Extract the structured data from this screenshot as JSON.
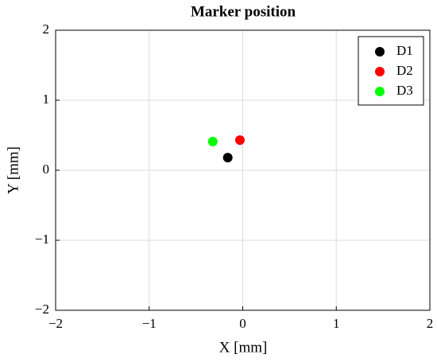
{
  "chart_data": {
    "type": "scatter",
    "title": "Marker position",
    "x_label": "X [mm]",
    "y_label": "Y [mm]",
    "series": [
      {
        "name": "D1",
        "color": "#000000",
        "x": [
          -0.16
        ],
        "values": [
          0.18
        ]
      },
      {
        "name": "D2",
        "color": "#ff0000",
        "x": [
          -0.03
        ],
        "values": [
          0.43
        ]
      },
      {
        "name": "D3",
        "color": "#00ff00",
        "x": [
          -0.32
        ],
        "values": [
          0.41
        ]
      }
    ],
    "xlim": [
      -2,
      2
    ],
    "ylim": [
      -2,
      2
    ],
    "xticks": [
      {
        "value": -2,
        "label": "−2"
      },
      {
        "value": -1,
        "label": "−1"
      },
      0,
      1,
      2
    ],
    "yticks": [
      {
        "value": -2,
        "label": "−2"
      },
      {
        "value": -1,
        "label": "−1"
      },
      0,
      1,
      2
    ],
    "grid": true,
    "legend_position": "upper-right"
  }
}
